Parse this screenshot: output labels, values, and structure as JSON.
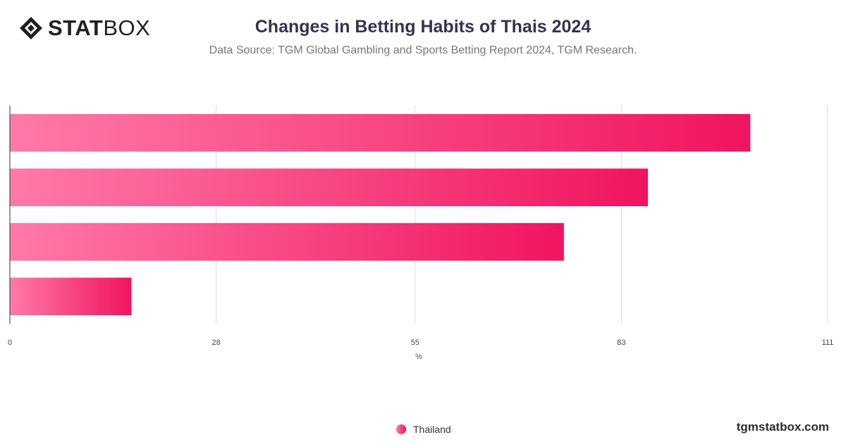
{
  "brand": {
    "logo_bold": "STAT",
    "logo_light": "BOX",
    "watermark": "tgmstatbox.com"
  },
  "chart_data": {
    "type": "bar",
    "orientation": "horizontal",
    "title": "Changes in Betting Habits of Thais 2024",
    "subtitle": "Data Source: TGM Global Gambling and Sports Betting Report 2024, TGM Research.",
    "xlabel": "%",
    "ylabel": "",
    "xlim": [
      0,
      111
    ],
    "ticks": [
      0,
      28,
      55,
      83,
      111
    ],
    "grid": true,
    "legend_position": "bottom-center",
    "series": [
      {
        "name": "Thailand",
        "values": [
          100.5,
          86.6,
          75.2,
          16.5
        ]
      }
    ],
    "colors": {
      "bar_start": "#ff7aa8",
      "bar_end": "#f0145f",
      "grid": "#dddddd",
      "axis": "#333333"
    }
  }
}
